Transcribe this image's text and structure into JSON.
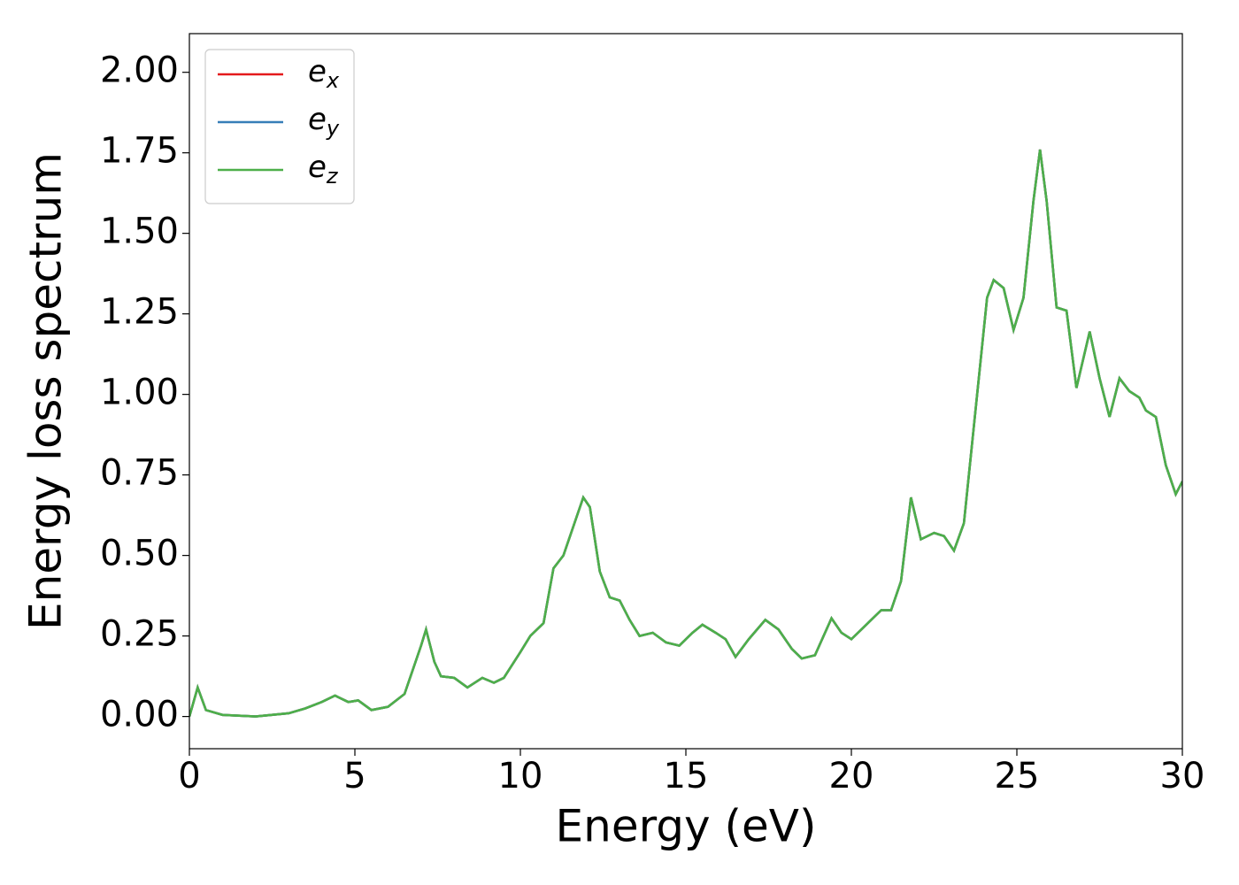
{
  "chart_data": {
    "type": "line",
    "xlabel": "Energy (eV)",
    "ylabel": "Energy loss spectrum",
    "xlim": [
      0,
      30
    ],
    "ylim": [
      -0.1,
      2.12
    ],
    "xticks": [
      0,
      5,
      10,
      15,
      20,
      25,
      30
    ],
    "yticks": [
      {
        "value": 0,
        "label": "0.00"
      },
      {
        "value": 0.25,
        "label": "0.25"
      },
      {
        "value": 0.5,
        "label": "0.50"
      },
      {
        "value": 0.75,
        "label": "0.75"
      },
      {
        "value": 1,
        "label": "1.00"
      },
      {
        "value": 1.25,
        "label": "1.25"
      },
      {
        "value": 1.5,
        "label": "1.50"
      },
      {
        "value": 1.75,
        "label": "1.75"
      },
      {
        "value": 2,
        "label": "2.00"
      }
    ],
    "legend": "upper left",
    "x": [
      0,
      0.25,
      0.5,
      1,
      2,
      3,
      3.5,
      4,
      4.4,
      4.8,
      5.1,
      5.5,
      6,
      6.5,
      7,
      7.15,
      7.4,
      7.6,
      8,
      8.4,
      8.85,
      9.2,
      9.5,
      10,
      10.3,
      10.7,
      11,
      11.3,
      11.9,
      12.1,
      12.4,
      12.7,
      13,
      13.3,
      13.6,
      14,
      14.4,
      14.8,
      15.2,
      15.5,
      15.9,
      16.2,
      16.5,
      16.9,
      17.4,
      17.8,
      18.2,
      18.5,
      18.9,
      19.4,
      19.7,
      20,
      20.5,
      20.9,
      21.2,
      21.5,
      21.8,
      22.1,
      22.5,
      22.8,
      23.1,
      23.4,
      23.7,
      24.1,
      24.3,
      24.6,
      24.9,
      25.2,
      25.5,
      25.7,
      25.9,
      26.2,
      26.5,
      26.8,
      27.2,
      27.5,
      27.8,
      28.1,
      28.4,
      28.7,
      28.9,
      29.2,
      29.5,
      29.8,
      30
    ],
    "series": [
      {
        "name": "ex",
        "color": "#e41a1c",
        "values": [
          0,
          0.09,
          0.02,
          0.005,
          0,
          0.01,
          0.025,
          0.045,
          0.065,
          0.045,
          0.05,
          0.02,
          0.03,
          0.07,
          0.22,
          0.27,
          0.17,
          0.125,
          0.12,
          0.09,
          0.12,
          0.105,
          0.12,
          0.2,
          0.25,
          0.29,
          0.46,
          0.5,
          0.68,
          0.65,
          0.45,
          0.37,
          0.36,
          0.3,
          0.25,
          0.26,
          0.23,
          0.22,
          0.26,
          0.285,
          0.26,
          0.24,
          0.185,
          0.24,
          0.3,
          0.27,
          0.21,
          0.18,
          0.19,
          0.305,
          0.26,
          0.24,
          0.29,
          0.33,
          0.33,
          0.42,
          0.68,
          0.55,
          0.57,
          0.56,
          0.515,
          0.6,
          0.9,
          1.3,
          1.355,
          1.33,
          1.2,
          1.3,
          1.6,
          1.76,
          1.6,
          1.27,
          1.26,
          1.02,
          1.195,
          1.05,
          0.93,
          1.05,
          1.01,
          0.99,
          0.95,
          0.93,
          0.78,
          0.69,
          0.73
        ]
      },
      {
        "name": "ey",
        "color": "#377eb8",
        "values": [
          0,
          0.09,
          0.02,
          0.005,
          0,
          0.01,
          0.025,
          0.045,
          0.065,
          0.045,
          0.05,
          0.02,
          0.03,
          0.07,
          0.22,
          0.27,
          0.17,
          0.125,
          0.12,
          0.09,
          0.12,
          0.105,
          0.12,
          0.2,
          0.25,
          0.29,
          0.46,
          0.5,
          0.68,
          0.65,
          0.45,
          0.37,
          0.36,
          0.3,
          0.25,
          0.26,
          0.23,
          0.22,
          0.26,
          0.285,
          0.26,
          0.24,
          0.185,
          0.24,
          0.3,
          0.27,
          0.21,
          0.18,
          0.19,
          0.305,
          0.26,
          0.24,
          0.29,
          0.33,
          0.33,
          0.42,
          0.68,
          0.55,
          0.57,
          0.56,
          0.515,
          0.6,
          0.9,
          1.3,
          1.355,
          1.33,
          1.2,
          1.3,
          1.6,
          1.76,
          1.6,
          1.27,
          1.26,
          1.02,
          1.195,
          1.05,
          0.93,
          1.05,
          1.01,
          0.99,
          0.95,
          0.93,
          0.78,
          0.69,
          0.73
        ]
      },
      {
        "name": "ez",
        "color": "#4daf4a",
        "values": [
          0,
          0.09,
          0.02,
          0.005,
          0,
          0.01,
          0.025,
          0.045,
          0.065,
          0.045,
          0.05,
          0.02,
          0.03,
          0.07,
          0.22,
          0.27,
          0.17,
          0.125,
          0.12,
          0.09,
          0.12,
          0.105,
          0.12,
          0.2,
          0.25,
          0.29,
          0.46,
          0.5,
          0.68,
          0.65,
          0.45,
          0.37,
          0.36,
          0.3,
          0.25,
          0.26,
          0.23,
          0.22,
          0.26,
          0.285,
          0.26,
          0.24,
          0.185,
          0.24,
          0.3,
          0.27,
          0.21,
          0.18,
          0.19,
          0.305,
          0.26,
          0.24,
          0.29,
          0.33,
          0.33,
          0.42,
          0.68,
          0.55,
          0.57,
          0.56,
          0.515,
          0.6,
          0.9,
          1.3,
          1.355,
          1.33,
          1.2,
          1.3,
          1.6,
          1.76,
          1.6,
          1.27,
          1.26,
          1.02,
          1.195,
          1.05,
          0.93,
          1.05,
          1.01,
          0.99,
          0.95,
          0.93,
          0.78,
          0.69,
          0.73
        ]
      }
    ]
  }
}
